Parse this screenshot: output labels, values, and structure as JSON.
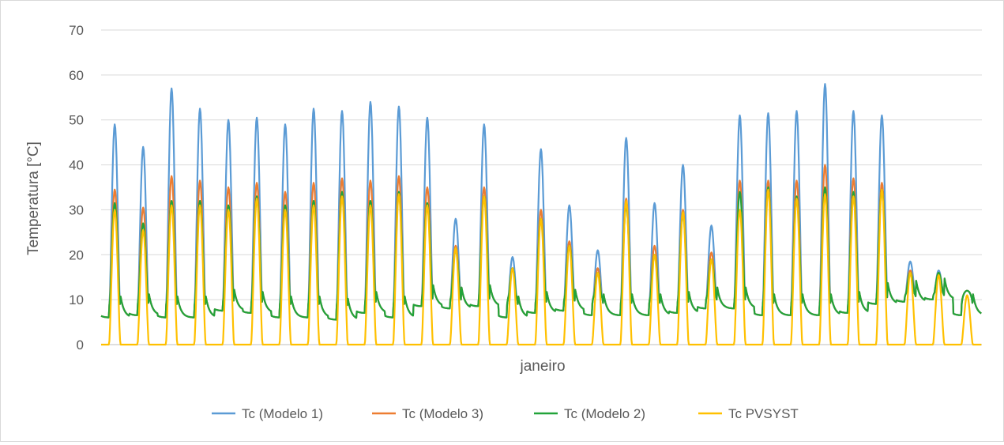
{
  "chart_data": {
    "type": "line",
    "title": "",
    "xlabel": "janeiro",
    "ylabel": "Temperatura [°C]",
    "ylim": [
      0,
      70
    ],
    "yticks": [
      0,
      10,
      20,
      30,
      40,
      50,
      60,
      70
    ],
    "grid": true,
    "legend_position": "bottom",
    "x_unit": "day of January",
    "x_range": [
      1,
      31
    ],
    "day_labels": "none",
    "days": [
      {
        "day": 1,
        "m1": 49,
        "m3": 34.5,
        "m2": 31.5,
        "pv": 30,
        "night": 6
      },
      {
        "day": 2,
        "m1": 44,
        "m3": 30.5,
        "m2": 27,
        "pv": 25.5,
        "night": 6.5
      },
      {
        "day": 3,
        "m1": 57,
        "m3": 37.5,
        "m2": 32,
        "pv": 31,
        "night": 6
      },
      {
        "day": 4,
        "m1": 52.5,
        "m3": 36.5,
        "m2": 32,
        "pv": 31,
        "night": 6
      },
      {
        "day": 5,
        "m1": 50,
        "m3": 35,
        "m2": 31,
        "pv": 30,
        "night": 7.5
      },
      {
        "day": 6,
        "m1": 50.5,
        "m3": 36,
        "m2": 33,
        "pv": 32.5,
        "night": 7
      },
      {
        "day": 7,
        "m1": 49,
        "m3": 34,
        "m2": 31,
        "pv": 30,
        "night": 6
      },
      {
        "day": 8,
        "m1": 52.5,
        "m3": 36,
        "m2": 32,
        "pv": 31,
        "night": 6
      },
      {
        "day": 9,
        "m1": 52,
        "m3": 37,
        "m2": 34,
        "pv": 33,
        "night": 5.5
      },
      {
        "day": 10,
        "m1": 54,
        "m3": 36.5,
        "m2": 32,
        "pv": 31,
        "night": 7
      },
      {
        "day": 11,
        "m1": 53,
        "m3": 37.5,
        "m2": 34,
        "pv": 33.5,
        "night": 6
      },
      {
        "day": 12,
        "m1": 50.5,
        "m3": 35,
        "m2": 31.5,
        "pv": 31,
        "night": 8.5
      },
      {
        "day": 13,
        "m1": 28,
        "m3": 22,
        "m2": 21,
        "pv": 21.5,
        "night": 8
      },
      {
        "day": 14,
        "m1": 49,
        "m3": 35,
        "m2": 33,
        "pv": 33,
        "night": 8.5
      },
      {
        "day": 15,
        "m1": 19.5,
        "m3": 17,
        "m2": 17,
        "pv": 17,
        "night": 6
      },
      {
        "day": 16,
        "m1": 43.5,
        "m3": 30,
        "m2": 28,
        "pv": 28,
        "night": 7
      },
      {
        "day": 17,
        "m1": 31,
        "m3": 23,
        "m2": 22,
        "pv": 22,
        "night": 7.5
      },
      {
        "day": 18,
        "m1": 21,
        "m3": 17,
        "m2": 16,
        "pv": 16,
        "night": 6.5
      },
      {
        "day": 19,
        "m1": 46,
        "m3": 32.5,
        "m2": 31,
        "pv": 32,
        "night": 6.5
      },
      {
        "day": 20,
        "m1": 31.5,
        "m3": 22,
        "m2": 20,
        "pv": 20,
        "night": 6.5
      },
      {
        "day": 21,
        "m1": 40,
        "m3": 30,
        "m2": 29,
        "pv": 29.5,
        "night": 7
      },
      {
        "day": 22,
        "m1": 26.5,
        "m3": 20.5,
        "m2": 19,
        "pv": 19,
        "night": 8
      },
      {
        "day": 23,
        "m1": 51,
        "m3": 36.5,
        "m2": 34,
        "pv": 30,
        "night": 8
      },
      {
        "day": 24,
        "m1": 51.5,
        "m3": 36.5,
        "m2": 35,
        "pv": 34.5,
        "night": 6.5
      },
      {
        "day": 25,
        "m1": 52,
        "m3": 36.5,
        "m2": 33,
        "pv": 32.5,
        "night": 6.5
      },
      {
        "day": 26,
        "m1": 58,
        "m3": 40,
        "m2": 35,
        "pv": 33.5,
        "night": 6.5
      },
      {
        "day": 27,
        "m1": 52,
        "m3": 37,
        "m2": 34,
        "pv": 33,
        "night": 7
      },
      {
        "day": 28,
        "m1": 51,
        "m3": 36,
        "m2": 34.5,
        "pv": 34.5,
        "night": 9
      },
      {
        "day": 29,
        "m1": 18.5,
        "m3": 16.5,
        "m2": 16,
        "pv": 16,
        "night": 9.5
      },
      {
        "day": 30,
        "m1": 16.5,
        "m3": 16,
        "m2": 16,
        "pv": 15.5,
        "night": 10
      },
      {
        "day": 31,
        "m1": 12,
        "m3": 11,
        "m2": 11,
        "pv": 11,
        "night": 6.5
      }
    ],
    "series": [
      {
        "key": "m1",
        "name": "Tc (Modelo 1)",
        "color": "#5b9bd5"
      },
      {
        "key": "m3",
        "name": "Tc (Modelo 3)",
        "color": "#ed7d31"
      },
      {
        "key": "m2",
        "name": "Tc (Modelo 2)",
        "color": "#22a33a"
      },
      {
        "key": "pv",
        "name": "Tc PVSYST",
        "color": "#ffc000"
      }
    ]
  }
}
